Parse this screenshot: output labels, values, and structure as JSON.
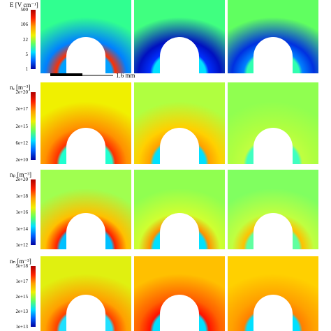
{
  "rows": [
    {
      "label": "E [V cm⁻¹]",
      "ticks": [
        "500",
        "106",
        "22",
        "5",
        "1"
      ]
    },
    {
      "label": "nₑ [m⁻³]",
      "ticks": [
        "2e+20",
        "2e+17",
        "2e+15",
        "6e+12",
        "2e+10"
      ]
    },
    {
      "label": "nₚ [m⁻³]",
      "ticks": [
        "2e+20",
        "1e+18",
        "1e+16",
        "1e+14",
        "1e+12"
      ]
    },
    {
      "label": "nₙ [m⁻³]",
      "ticks": [
        "5e+18",
        "1e+17",
        "2e+15",
        "2e+13",
        "1e+13"
      ]
    }
  ],
  "scale_bar": "1.6 mm"
}
